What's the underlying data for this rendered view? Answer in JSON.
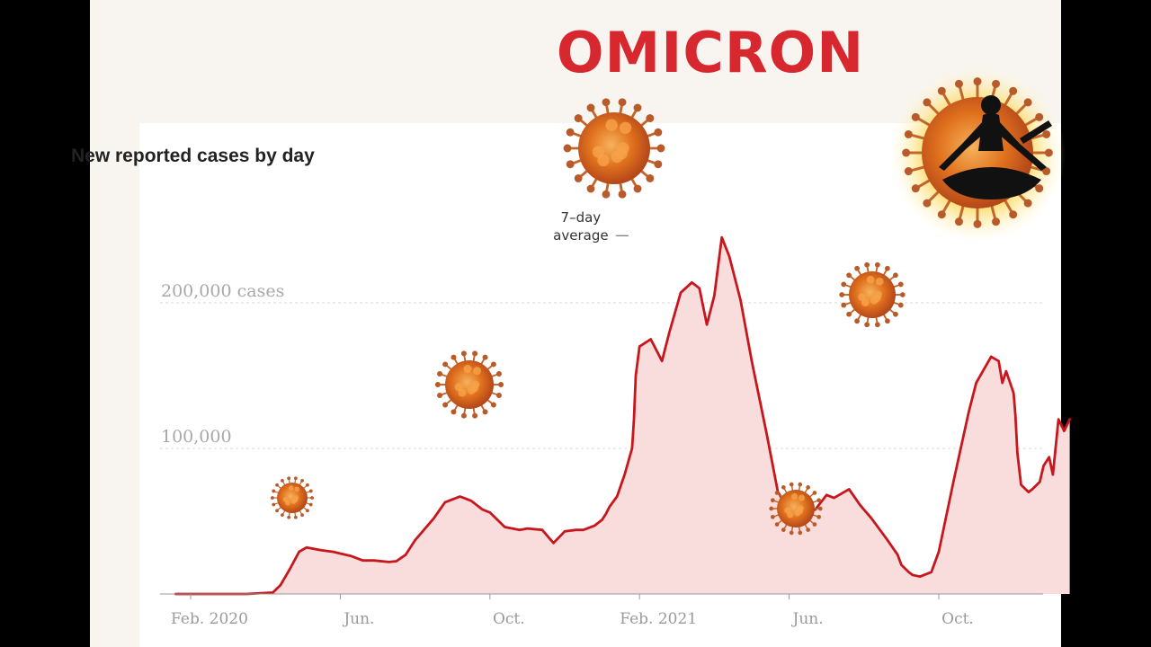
{
  "headline": "OMICRON",
  "chart_data": {
    "type": "area",
    "title": "New reported cases by day",
    "xlabel": "",
    "ylabel": "",
    "ylim": [
      0,
      250000
    ],
    "grid": true,
    "legend": "none",
    "color": "#c8161d",
    "fill": "#f9dcdc",
    "y_ticks": [
      {
        "value": 100000,
        "label": "100,000"
      },
      {
        "value": 200000,
        "label": "200,000 cases"
      }
    ],
    "x_ticks": [
      {
        "x": 0,
        "label": "Feb. 2020"
      },
      {
        "x": 4,
        "label": "Jun."
      },
      {
        "x": 8,
        "label": "Oct."
      },
      {
        "x": 12,
        "label": "Feb. 2021"
      },
      {
        "x": 16,
        "label": "Jun."
      },
      {
        "x": 20,
        "label": "Oct."
      }
    ],
    "annotation": {
      "line1": "7–day",
      "line2": "average",
      "x": 11.8,
      "y": 248000
    },
    "series": [
      {
        "x": [
          -0.4,
          0.5,
          1.5,
          2.2,
          2.4,
          2.65,
          2.9,
          3.1,
          3.5,
          3.8,
          4.3,
          4.6,
          4.9,
          5.3,
          5.5,
          5.75,
          6.0,
          6.5,
          6.8,
          7.2,
          7.3,
          7.5,
          7.8,
          8.0,
          8.4,
          8.8,
          9.0,
          9.4,
          9.7,
          9.85,
          10.0,
          10.3,
          10.5,
          10.6,
          10.8,
          11.0,
          11.1,
          11.2,
          11.4,
          11.6,
          11.8,
          11.85,
          11.9,
          12.0,
          12.3,
          12.6,
          12.7,
          12.8,
          13.1,
          13.4,
          13.6,
          13.8,
          14.0,
          14.2,
          14.4,
          14.7,
          15.0,
          15.4,
          15.7,
          16.0,
          16.4,
          16.7,
          17.0,
          17.2,
          17.6,
          17.9,
          18.2,
          18.4,
          18.6,
          18.9,
          19.0,
          19.2,
          19.3,
          19.5,
          19.8,
          20.0,
          20.4,
          20.8,
          21.0,
          21.4,
          21.6,
          21.7,
          21.8,
          22.0,
          22.05,
          22.1,
          22.2,
          22.4,
          22.5,
          22.7,
          22.8,
          22.95,
          23.05,
          23.2,
          23.35,
          23.5
        ],
        "y": [
          0,
          0,
          0,
          1000,
          6000,
          17000,
          29000,
          32000,
          30000,
          29000,
          26000,
          23000,
          23000,
          22000,
          22500,
          27000,
          37000,
          52000,
          63000,
          67000,
          66000,
          64000,
          58000,
          56000,
          46000,
          44000,
          45000,
          44000,
          35000,
          39000,
          43000,
          44000,
          44000,
          45000,
          47000,
          51000,
          55000,
          60000,
          67000,
          82000,
          100000,
          120000,
          150000,
          170000,
          175000,
          160000,
          170000,
          180000,
          207000,
          214000,
          210000,
          185000,
          205000,
          245000,
          232000,
          202000,
          160000,
          110000,
          70000,
          58000,
          55000,
          58000,
          68000,
          66000,
          72000,
          61000,
          52000,
          45000,
          38000,
          27000,
          20000,
          15000,
          13000,
          12000,
          15000,
          29000,
          78000,
          125000,
          145000,
          163000,
          160000,
          145000,
          153000,
          138000,
          122000,
          97000,
          75000,
          70000,
          72000,
          77000,
          88000,
          94000,
          82000,
          120000,
          112000,
          120000
        ]
      }
    ]
  }
}
